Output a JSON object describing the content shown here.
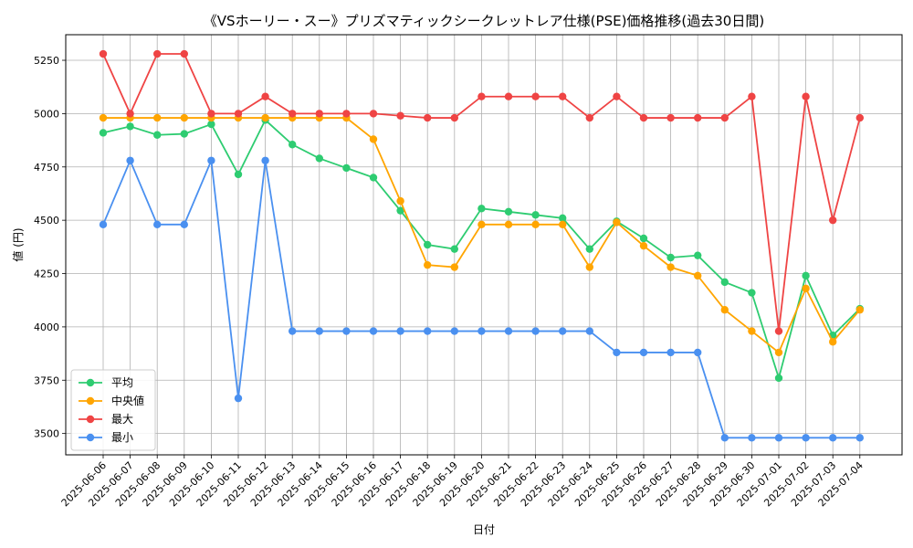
{
  "chart_data": {
    "type": "line",
    "title": "《VSホーリー・スー》プリズマティックシークレットレア仕様(PSE)価格推移(過去30日間)",
    "xlabel": "日付",
    "ylabel": "値 (円)",
    "ylim": [
      3400,
      5370
    ],
    "yticks": [
      3500,
      3750,
      4000,
      4250,
      4500,
      4750,
      5000,
      5250
    ],
    "grid": true,
    "legend_position": "lower-left",
    "categories": [
      "2025-06-06",
      "2025-06-07",
      "2025-06-08",
      "2025-06-09",
      "2025-06-10",
      "2025-06-11",
      "2025-06-12",
      "2025-06-13",
      "2025-06-14",
      "2025-06-15",
      "2025-06-16",
      "2025-06-17",
      "2025-06-18",
      "2025-06-19",
      "2025-06-20",
      "2025-06-21",
      "2025-06-22",
      "2025-06-23",
      "2025-06-24",
      "2025-06-25",
      "2025-06-26",
      "2025-06-27",
      "2025-06-28",
      "2025-06-29",
      "2025-06-30",
      "2025-07-01",
      "2025-07-02",
      "2025-07-03",
      "2025-07-04"
    ],
    "series": [
      {
        "name": "平均",
        "color": "#2ecc71",
        "values": [
          4910,
          4940,
          4900,
          4905,
          4950,
          4715,
          4970,
          4855,
          4790,
          4745,
          4700,
          4545,
          4385,
          4365,
          4555,
          4540,
          4525,
          4510,
          4365,
          4495,
          4415,
          4325,
          4335,
          4210,
          4160,
          3760,
          4240,
          3960,
          4085
        ]
      },
      {
        "name": "中央値",
        "color": "#ffa500",
        "values": [
          4980,
          4980,
          4980,
          4980,
          4980,
          4980,
          4980,
          4980,
          4980,
          4980,
          4880,
          4590,
          4290,
          4280,
          4480,
          4480,
          4480,
          4480,
          4280,
          4490,
          4380,
          4280,
          4240,
          4080,
          3980,
          3880,
          4180,
          3930,
          4080
        ]
      },
      {
        "name": "最大",
        "color": "#ef4444",
        "values": [
          5280,
          5000,
          5280,
          5280,
          5000,
          5000,
          5080,
          5000,
          5000,
          5000,
          5000,
          4990,
          4980,
          4980,
          5080,
          5080,
          5080,
          5080,
          4980,
          5080,
          4980,
          4980,
          4980,
          4980,
          5080,
          3980,
          5080,
          4500,
          4980
        ]
      },
      {
        "name": "最小",
        "color": "#4a90f0",
        "values": [
          4480,
          4780,
          4480,
          4480,
          4780,
          3665,
          4780,
          3980,
          3980,
          3980,
          3980,
          3980,
          3980,
          3980,
          3980,
          3980,
          3980,
          3980,
          3980,
          3880,
          3880,
          3880,
          3880,
          3480,
          3480,
          3480,
          3480,
          3480,
          3480
        ]
      }
    ]
  }
}
